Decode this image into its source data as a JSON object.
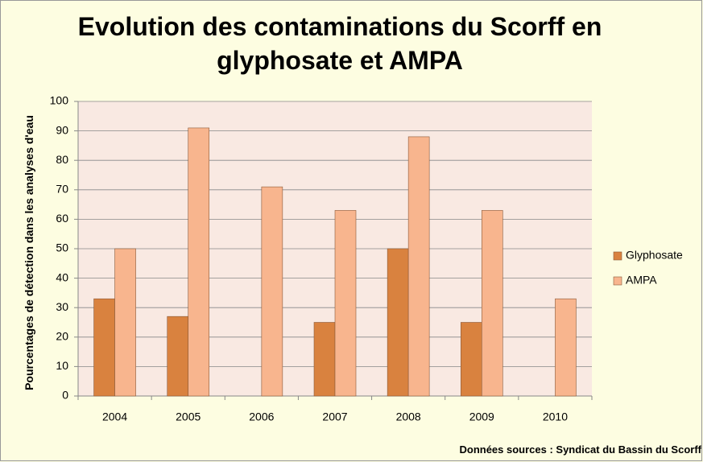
{
  "chart_data": {
    "type": "bar",
    "title": "Evolution des contaminations du Scorff en glyphosate et AMPA",
    "y_label": "Pourcentages de détection dans les analyses d'eau",
    "source": "Données sources : Syndicat du Bassin du Scorff",
    "categories": [
      "2004",
      "2005",
      "2006",
      "2007",
      "2008",
      "2009",
      "2010"
    ],
    "series": [
      {
        "name": "Glyphosate",
        "color": "#d9823f",
        "values": [
          33,
          27,
          0,
          25,
          50,
          25,
          0
        ]
      },
      {
        "name": "AMPA",
        "color": "#f8b58e",
        "values": [
          50,
          91,
          71,
          63,
          88,
          63,
          33
        ]
      }
    ],
    "ylim": [
      0,
      100
    ],
    "yticks": [
      0,
      10,
      20,
      30,
      40,
      50,
      60,
      70,
      80,
      90,
      100
    ],
    "grid": true,
    "legend": "right"
  }
}
